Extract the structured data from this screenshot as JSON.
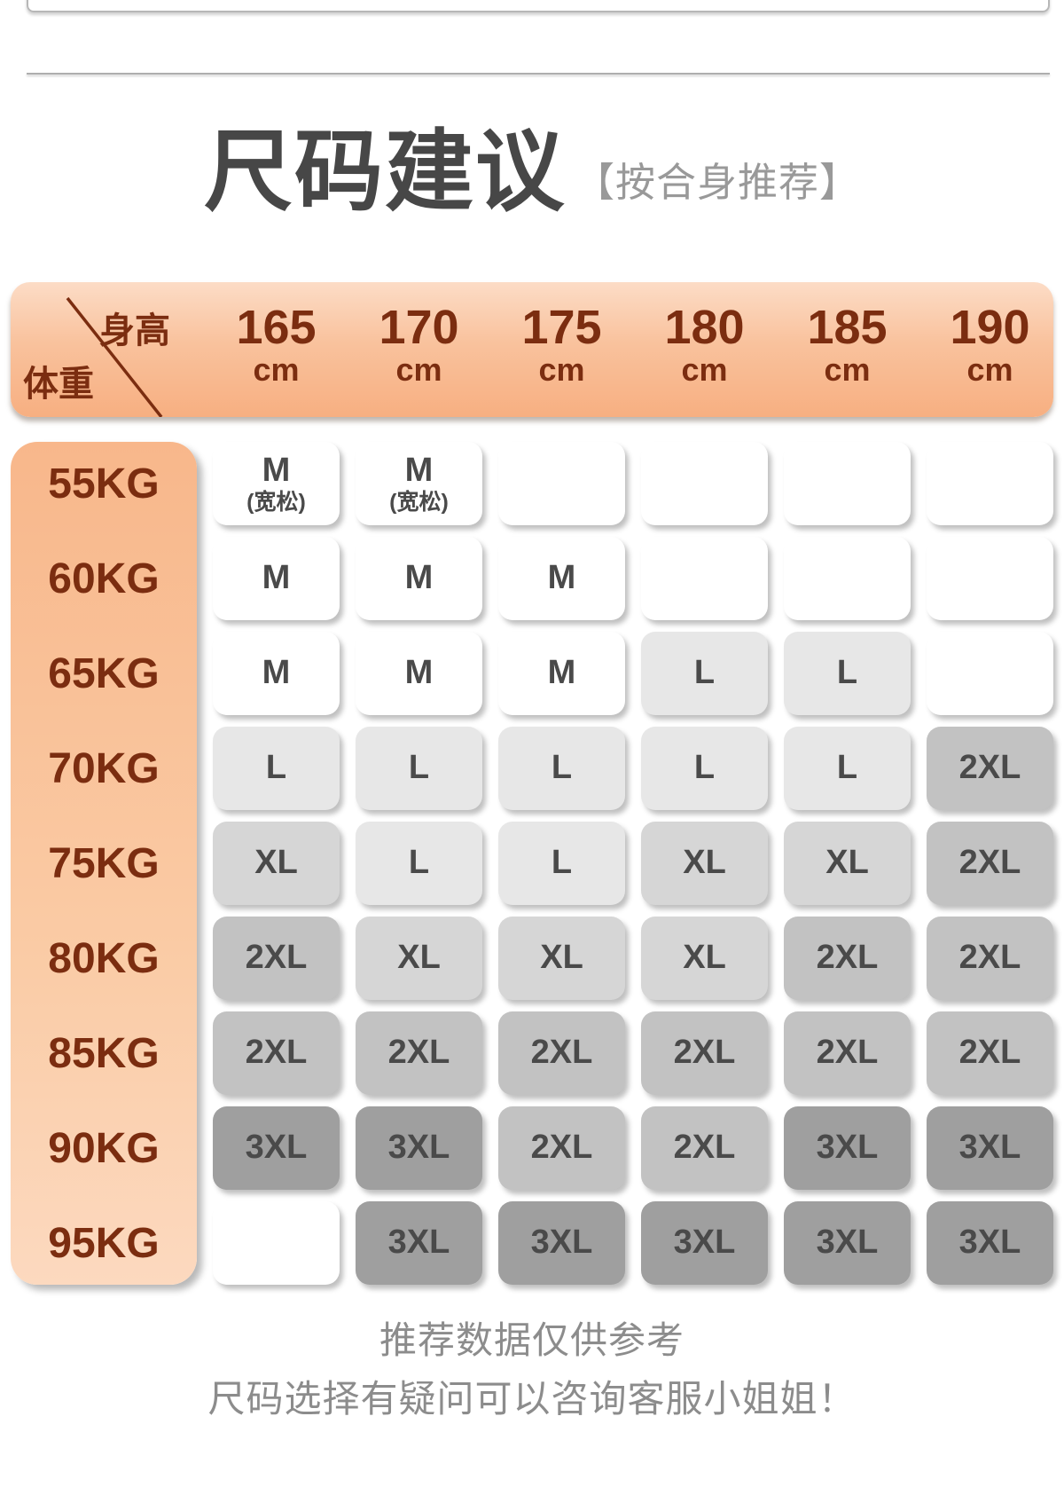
{
  "header": {
    "title": "尺码建议",
    "subtitle": "【按合身推荐】"
  },
  "table": {
    "height_label": "身高",
    "weight_label": "体重",
    "height_unit": "cm",
    "heights": [
      "165",
      "170",
      "175",
      "180",
      "185",
      "190"
    ],
    "rows": [
      {
        "weight": "55KG",
        "cells": [
          {
            "size": "M",
            "note": "(宽松)"
          },
          {
            "size": "M",
            "note": "(宽松)"
          },
          {
            "size": ""
          },
          {
            "size": ""
          },
          {
            "size": ""
          },
          {
            "size": ""
          }
        ]
      },
      {
        "weight": "60KG",
        "cells": [
          {
            "size": "M"
          },
          {
            "size": "M"
          },
          {
            "size": "M"
          },
          {
            "size": ""
          },
          {
            "size": ""
          },
          {
            "size": ""
          }
        ]
      },
      {
        "weight": "65KG",
        "cells": [
          {
            "size": "M"
          },
          {
            "size": "M"
          },
          {
            "size": "M"
          },
          {
            "size": "L"
          },
          {
            "size": "L"
          },
          {
            "size": ""
          }
        ]
      },
      {
        "weight": "70KG",
        "cells": [
          {
            "size": "L"
          },
          {
            "size": "L"
          },
          {
            "size": "L"
          },
          {
            "size": "L"
          },
          {
            "size": "L"
          },
          {
            "size": "2XL"
          }
        ]
      },
      {
        "weight": "75KG",
        "cells": [
          {
            "size": "XL"
          },
          {
            "size": "L"
          },
          {
            "size": "L"
          },
          {
            "size": "XL"
          },
          {
            "size": "XL"
          },
          {
            "size": "2XL"
          }
        ]
      },
      {
        "weight": "80KG",
        "cells": [
          {
            "size": "2XL"
          },
          {
            "size": "XL"
          },
          {
            "size": "XL"
          },
          {
            "size": "XL"
          },
          {
            "size": "2XL"
          },
          {
            "size": "2XL"
          }
        ]
      },
      {
        "weight": "85KG",
        "cells": [
          {
            "size": "2XL"
          },
          {
            "size": "2XL"
          },
          {
            "size": "2XL"
          },
          {
            "size": "2XL"
          },
          {
            "size": "2XL"
          },
          {
            "size": "2XL"
          }
        ]
      },
      {
        "weight": "90KG",
        "cells": [
          {
            "size": "3XL"
          },
          {
            "size": "3XL"
          },
          {
            "size": "2XL"
          },
          {
            "size": "2XL"
          },
          {
            "size": "3XL"
          },
          {
            "size": "3XL"
          }
        ]
      },
      {
        "weight": "95KG",
        "cells": [
          {
            "size": ""
          },
          {
            "size": "3XL"
          },
          {
            "size": "3XL"
          },
          {
            "size": "3XL"
          },
          {
            "size": "3XL"
          },
          {
            "size": "3XL"
          }
        ]
      }
    ]
  },
  "colors": {
    "header_gradient_top": "#FCDCC6",
    "header_gradient_bottom": "#F7AF81",
    "weight_gradient_top": "#F8B78B",
    "weight_gradient_bottom": "#FCD9BF",
    "brown_text": "#7B2D10",
    "title_text": "#474747",
    "subtitle_text": "#999999",
    "cell_text": "#4A4A4A",
    "footer_text": "#8C8C8C",
    "cell_colors": {
      "M": "#FFFFFF",
      "L": "#E7E7E7",
      "XL": "#D6D6D6",
      "2XL": "#C2C2C2",
      "3XL": "#9F9F9F",
      "empty": "#FFFFFF"
    }
  },
  "footer": {
    "line1": "推荐数据仅供参考",
    "line2": "尺码选择有疑问可以咨询客服小姐姐！"
  },
  "chart_data": {
    "type": "table",
    "title": "尺码建议",
    "subtitle": "【按合身推荐】",
    "column_axis_label": "身高",
    "row_axis_label": "体重",
    "columns": [
      "165cm",
      "170cm",
      "175cm",
      "180cm",
      "185cm",
      "190cm"
    ],
    "row_labels": [
      "55KG",
      "60KG",
      "65KG",
      "70KG",
      "75KG",
      "80KG",
      "85KG",
      "90KG",
      "95KG"
    ],
    "values": [
      [
        "M(宽松)",
        "M(宽松)",
        "",
        "",
        "",
        ""
      ],
      [
        "M",
        "M",
        "M",
        "",
        "",
        ""
      ],
      [
        "M",
        "M",
        "M",
        "L",
        "L",
        ""
      ],
      [
        "L",
        "L",
        "L",
        "L",
        "L",
        "2XL"
      ],
      [
        "XL",
        "L",
        "L",
        "XL",
        "XL",
        "2XL"
      ],
      [
        "2XL",
        "XL",
        "XL",
        "XL",
        "2XL",
        "2XL"
      ],
      [
        "2XL",
        "2XL",
        "2XL",
        "2XL",
        "2XL",
        "2XL"
      ],
      [
        "3XL",
        "3XL",
        "2XL",
        "2XL",
        "3XL",
        "3XL"
      ],
      [
        "",
        "3XL",
        "3XL",
        "3XL",
        "3XL",
        "3XL"
      ]
    ],
    "notes": "推荐数据仅供参考 尺码选择有疑问可以咨询客服小姐姐！",
    "legend_position": "none",
    "grid": false
  }
}
